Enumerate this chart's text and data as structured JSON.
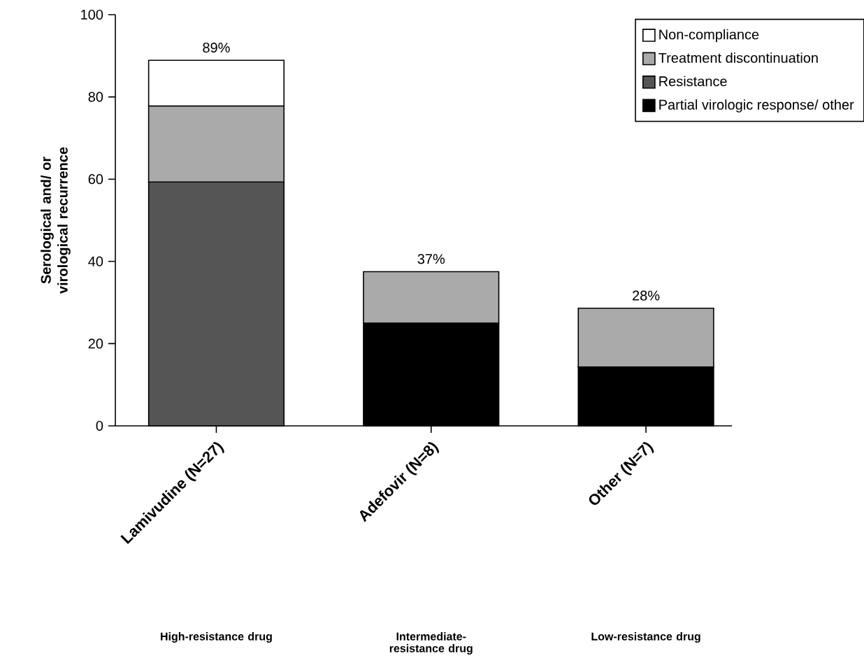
{
  "chart_data": {
    "type": "bar",
    "stacked": true,
    "ylabel": "Serological and/ or virological recurrence",
    "categories": [
      "Lamivudine (N=27)",
      "Adefovir (N=8)",
      "Other (N=7)"
    ],
    "series": [
      {
        "name": "Partial virologic response/ other",
        "color": "#000000",
        "values": [
          null,
          25,
          14.3
        ]
      },
      {
        "name": "Resistance",
        "color": "#555555",
        "values": [
          59.3,
          null,
          null
        ]
      },
      {
        "name": "Treatment discontinuation",
        "color": "#aaaaaa",
        "values": [
          18.5,
          12.5,
          14.3
        ]
      },
      {
        "name": "Non-compliance",
        "color": "#ffffff",
        "values": [
          11.1,
          null,
          null
        ]
      }
    ],
    "totals": [
      "89%",
      "37%",
      "28%"
    ],
    "annotations": [
      "High-resistance drug",
      "Intermediate-resistance drug",
      "Low-resistance drug"
    ],
    "ylim": [
      0,
      100
    ],
    "yticks": [
      0,
      20,
      40,
      60,
      80,
      100
    ],
    "grid": false,
    "legend": "top right"
  }
}
